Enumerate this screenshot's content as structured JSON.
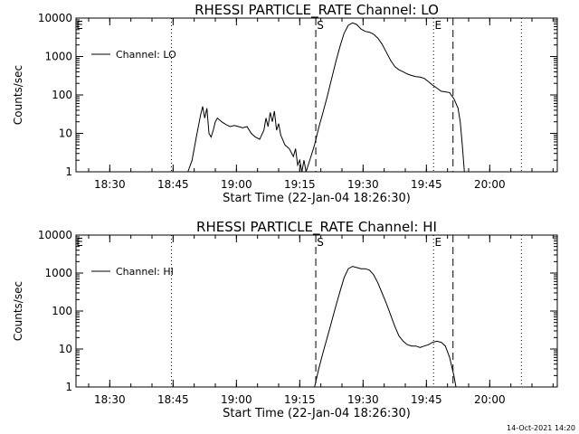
{
  "timestamp": "14-Oct-2021 14:20",
  "chart_data": [
    {
      "type": "line",
      "title": "RHESSI PARTICLE_RATE Channel: LO",
      "xlabel": "Start Time (22-Jan-04 18:26:30)",
      "ylabel": "Counts/sec",
      "y_scale": "log",
      "ylim": [
        1,
        10000
      ],
      "xlim_minutes": [
        -4.5,
        109.5
      ],
      "x_tick_labels": [
        "18:30",
        "18:45",
        "19:00",
        "19:15",
        "19:30",
        "19:45",
        "20:00"
      ],
      "x_tick_minutes": [
        3.5,
        18.5,
        33.5,
        48.5,
        63.5,
        78.5,
        93.5
      ],
      "y_tick_labels": [
        "1",
        "10",
        "100",
        "1000",
        "10000"
      ],
      "y_tick_values": [
        1,
        10,
        100,
        1000,
        10000
      ],
      "grid": false,
      "legend": "top-left",
      "markers": [
        {
          "label": "",
          "style": "dotted",
          "minute": 18.1
        },
        {
          "label": "S",
          "style": "dashed",
          "minute": 52.3
        },
        {
          "label": "E",
          "style": "dotted",
          "minute": 80.2
        },
        {
          "label": "",
          "style": "dashed",
          "minute": 84.8
        },
        {
          "label": "",
          "style": "dotted",
          "minute": 101.0
        }
      ],
      "corner_mark": "E",
      "series": [
        {
          "name": "Channel: LO",
          "x": [
            22,
            23,
            24,
            25,
            25.5,
            26,
            26.5,
            27,
            27.5,
            28,
            28.5,
            29,
            30,
            31,
            32,
            33,
            34,
            35,
            36,
            37,
            38,
            39,
            40,
            40.5,
            41,
            41.5,
            42,
            42.5,
            43,
            43.5,
            44,
            45,
            46,
            47,
            47.5,
            48,
            48.5,
            49,
            49.5,
            50,
            51,
            52,
            53,
            54,
            55,
            56,
            57,
            58,
            59,
            60,
            61,
            62,
            63,
            64,
            65,
            66,
            67,
            68,
            69,
            70,
            71,
            72,
            73,
            74,
            75,
            76,
            77,
            78,
            79,
            80,
            81,
            82,
            83,
            84,
            84.5,
            85,
            86,
            86.5,
            87,
            87.5
          ],
          "y": [
            1,
            2,
            8,
            30,
            50,
            25,
            45,
            10,
            8,
            12,
            20,
            25,
            20,
            17,
            15,
            16,
            15,
            14,
            15,
            10,
            8,
            7,
            12,
            25,
            15,
            35,
            20,
            38,
            12,
            18,
            9,
            5,
            4,
            2.5,
            4,
            1.5,
            2,
            1,
            2,
            1,
            2.2,
            5,
            14,
            35,
            90,
            250,
            700,
            1800,
            4000,
            6500,
            7500,
            6800,
            5200,
            4500,
            4300,
            3800,
            3000,
            2100,
            1300,
            800,
            550,
            450,
            400,
            350,
            320,
            300,
            290,
            270,
            220,
            180,
            150,
            125,
            120,
            115,
            95,
            80,
            45,
            20,
            5,
            1
          ]
        }
      ]
    },
    {
      "type": "line",
      "title": "RHESSI PARTICLE_RATE Channel: HI",
      "xlabel": "Start Time (22-Jan-04 18:26:30)",
      "ylabel": "Counts/sec",
      "y_scale": "log",
      "ylim": [
        1,
        10000
      ],
      "xlim_minutes": [
        -4.5,
        109.5
      ],
      "x_tick_labels": [
        "18:30",
        "18:45",
        "19:00",
        "19:15",
        "19:30",
        "19:45",
        "20:00"
      ],
      "x_tick_minutes": [
        3.5,
        18.5,
        33.5,
        48.5,
        63.5,
        78.5,
        93.5
      ],
      "y_tick_labels": [
        "1",
        "10",
        "100",
        "1000",
        "10000"
      ],
      "y_tick_values": [
        1,
        10,
        100,
        1000,
        10000
      ],
      "grid": false,
      "legend": "top-left",
      "markers": [
        {
          "label": "",
          "style": "dotted",
          "minute": 18.1
        },
        {
          "label": "S",
          "style": "dashed",
          "minute": 52.3
        },
        {
          "label": "E",
          "style": "dotted",
          "minute": 80.2
        },
        {
          "label": "",
          "style": "dashed",
          "minute": 84.8
        },
        {
          "label": "",
          "style": "dotted",
          "minute": 101.0
        }
      ],
      "corner_mark": "E",
      "series": [
        {
          "name": "Channel: HI",
          "x": [
            52,
            53,
            54,
            55,
            56,
            57,
            58,
            59,
            60,
            61,
            62,
            63,
            64,
            65,
            66,
            67,
            68,
            69,
            70,
            71,
            72,
            73,
            74,
            75,
            76,
            77,
            78,
            79,
            80,
            81,
            82,
            83,
            84,
            85,
            85.5
          ],
          "y": [
            1,
            3,
            8,
            20,
            50,
            130,
            320,
            750,
            1300,
            1500,
            1400,
            1300,
            1300,
            1200,
            900,
            550,
            300,
            160,
            80,
            40,
            22,
            16,
            13,
            12,
            12,
            11,
            12,
            13,
            15,
            16,
            15,
            12,
            6,
            2,
            1
          ]
        }
      ]
    }
  ]
}
